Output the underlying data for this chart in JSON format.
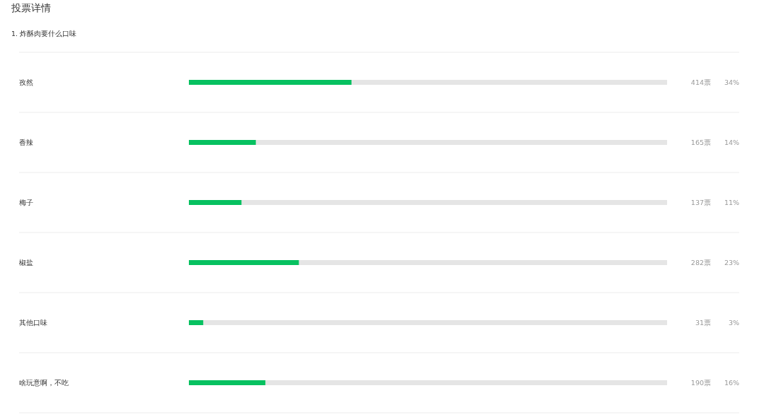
{
  "chart_data": {
    "type": "bar",
    "orientation": "horizontal",
    "title": "投票详情",
    "subtitle": "1. 炸酥肉要什么口味",
    "categories": [
      "孜然",
      "香辣",
      "梅子",
      "椒盐",
      "其他口味",
      "啥玩意啊，不吃"
    ],
    "values": [
      34,
      14,
      11,
      23,
      3,
      16
    ],
    "value_labels": [
      "34%",
      "14%",
      "11%",
      "23%",
      "3%",
      "16%"
    ],
    "color": "#07c160",
    "xlim": [
      0,
      100
    ],
    "annotations": [
      "414票",
      "165票",
      "137票",
      "282票",
      "31票",
      "190票"
    ]
  }
}
